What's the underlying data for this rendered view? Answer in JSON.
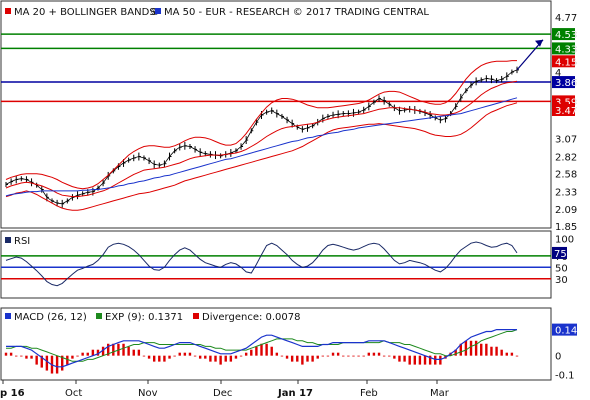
{
  "legend": {
    "main": [
      {
        "label": "MA 20 + BOLLINGER BANDS",
        "color": "#dd0000",
        "suffix_mark": "®"
      },
      {
        "label": "MA 50 - EUR - RESEARCH © 2017 TRADING CENTRAL",
        "color": "#1a33cc"
      }
    ],
    "rsi": [
      {
        "label": "RSI",
        "color": "#1a2a66"
      }
    ],
    "macd": [
      {
        "label": "MACD (26, 12)",
        "color": "#1a33cc"
      },
      {
        "label": "EXP (9): 0.1371",
        "color": "#1e8a1e"
      },
      {
        "label": "Divergence: 0.0078",
        "color": "#dd0000"
      }
    ]
  },
  "colors": {
    "price": "#000000",
    "bollinger": "#dd0000",
    "ma50": "#1a33cc",
    "resistance": "#008000",
    "pivot": "#0000a0",
    "support": "#dd0000",
    "badge_last": "#000080",
    "frame": "#333333"
  },
  "x_axis": {
    "months": [
      {
        "label": "p 16",
        "bold": true
      },
      {
        "label": "Oct",
        "bold": false
      },
      {
        "label": "Nov",
        "bold": false
      },
      {
        "label": "Dec",
        "bold": false
      },
      {
        "label": "Jan 17",
        "bold": true
      },
      {
        "label": "Feb",
        "bold": false
      },
      {
        "label": "Mar",
        "bold": false
      }
    ]
  },
  "chart_data": [
    {
      "type": "line",
      "panel": "price",
      "y_ticks": [
        "4.77",
        "4.53",
        "4.33",
        "4.15",
        "4",
        "3.86",
        "3.59",
        "3.47",
        "3.07",
        "2.82",
        "2.58",
        "2.33",
        "2.09",
        "1.85"
      ],
      "ylim": [
        1.85,
        4.95
      ],
      "levels": [
        {
          "value": 4.53,
          "label": "4.53",
          "kind": "resistance"
        },
        {
          "value": 4.33,
          "label": "4.33",
          "kind": "resistance"
        },
        {
          "value": 3.86,
          "label": "3.86",
          "kind": "pivot"
        },
        {
          "value": 3.59,
          "label": "3.59",
          "kind": "support"
        }
      ],
      "badges": [
        {
          "value": 4.53,
          "label": "4.53",
          "color": "#008000"
        },
        {
          "value": 4.33,
          "label": "4.33",
          "color": "#008000"
        },
        {
          "value": 4.15,
          "label": "4.15",
          "color": "#dd0000"
        },
        {
          "value": 3.86,
          "label": "3.86",
          "color": "#0000a0"
        },
        {
          "value": 3.59,
          "label": "3.59",
          "color": "#dd0000"
        },
        {
          "value": 3.47,
          "label": "3.47",
          "color": "#dd0000"
        }
      ],
      "series": [
        {
          "name": "Price",
          "kind": "price",
          "values": [
            2.43,
            2.47,
            2.5,
            2.51,
            2.5,
            2.46,
            2.42,
            2.36,
            2.25,
            2.2,
            2.17,
            2.16,
            2.2,
            2.25,
            2.28,
            2.3,
            2.32,
            2.33,
            2.38,
            2.45,
            2.55,
            2.62,
            2.68,
            2.73,
            2.77,
            2.8,
            2.82,
            2.8,
            2.76,
            2.71,
            2.7,
            2.72,
            2.82,
            2.9,
            2.95,
            2.97,
            2.96,
            2.92,
            2.88,
            2.86,
            2.85,
            2.84,
            2.83,
            2.85,
            2.87,
            2.9,
            2.96,
            3.05,
            3.18,
            3.3,
            3.4,
            3.44,
            3.46,
            3.42,
            3.38,
            3.33,
            3.28,
            3.23,
            3.2,
            3.22,
            3.25,
            3.3,
            3.35,
            3.38,
            3.4,
            3.41,
            3.42,
            3.42,
            3.43,
            3.44,
            3.47,
            3.52,
            3.58,
            3.63,
            3.6,
            3.55,
            3.5,
            3.46,
            3.47,
            3.48,
            3.47,
            3.45,
            3.43,
            3.4,
            3.36,
            3.33,
            3.35,
            3.42,
            3.52,
            3.64,
            3.74,
            3.82,
            3.87,
            3.89,
            3.91,
            3.9,
            3.88,
            3.9,
            3.94,
            4.0,
            4.03
          ]
        },
        {
          "name": "MA 20",
          "kind": "mid",
          "values": [
            2.38,
            2.41,
            2.43,
            2.45,
            2.46,
            2.45,
            2.43,
            2.41,
            2.38,
            2.35,
            2.31,
            2.28,
            2.27,
            2.26,
            2.26,
            2.27,
            2.28,
            2.3,
            2.32,
            2.34,
            2.37,
            2.41,
            2.45,
            2.49,
            2.53,
            2.57,
            2.6,
            2.63,
            2.64,
            2.65,
            2.66,
            2.67,
            2.69,
            2.71,
            2.73,
            2.76,
            2.79,
            2.81,
            2.82,
            2.83,
            2.84,
            2.84,
            2.84,
            2.85,
            2.86,
            2.87,
            2.89,
            2.92,
            2.96,
            3.0,
            3.05,
            3.1,
            3.14,
            3.18,
            3.21,
            3.23,
            3.24,
            3.25,
            3.26,
            3.27,
            3.28,
            3.3,
            3.32,
            3.34,
            3.36,
            3.37,
            3.38,
            3.39,
            3.4,
            3.41,
            3.42,
            3.44,
            3.46,
            3.48,
            3.49,
            3.5,
            3.5,
            3.5,
            3.49,
            3.48,
            3.47,
            3.46,
            3.44,
            3.42,
            3.41,
            3.4,
            3.4,
            3.41,
            3.43,
            3.46,
            3.51,
            3.56,
            3.62,
            3.68,
            3.73,
            3.77,
            3.8,
            3.83,
            3.85,
            3.86,
            3.87
          ]
        },
        {
          "name": "Upper Band",
          "kind": "band",
          "values": [
            2.5,
            2.53,
            2.55,
            2.57,
            2.58,
            2.58,
            2.58,
            2.57,
            2.55,
            2.53,
            2.5,
            2.46,
            2.43,
            2.4,
            2.38,
            2.37,
            2.38,
            2.4,
            2.44,
            2.5,
            2.56,
            2.63,
            2.7,
            2.77,
            2.84,
            2.89,
            2.93,
            2.96,
            2.97,
            2.97,
            2.96,
            2.95,
            2.95,
            2.97,
            3.0,
            3.04,
            3.07,
            3.09,
            3.09,
            3.08,
            3.06,
            3.03,
            3.0,
            2.98,
            2.98,
            3.0,
            3.06,
            3.14,
            3.24,
            3.34,
            3.43,
            3.51,
            3.57,
            3.61,
            3.63,
            3.63,
            3.62,
            3.6,
            3.57,
            3.54,
            3.52,
            3.5,
            3.5,
            3.5,
            3.51,
            3.52,
            3.53,
            3.54,
            3.55,
            3.56,
            3.58,
            3.61,
            3.65,
            3.69,
            3.72,
            3.73,
            3.73,
            3.72,
            3.69,
            3.66,
            3.63,
            3.6,
            3.58,
            3.56,
            3.55,
            3.55,
            3.57,
            3.62,
            3.7,
            3.8,
            3.9,
            3.98,
            4.04,
            4.09,
            4.12,
            4.14,
            4.15,
            4.15,
            4.15,
            4.16,
            4.16
          ]
        },
        {
          "name": "Lower Band",
          "kind": "band",
          "values": [
            2.26,
            2.28,
            2.31,
            2.32,
            2.34,
            2.32,
            2.29,
            2.25,
            2.21,
            2.17,
            2.13,
            2.1,
            2.08,
            2.07,
            2.07,
            2.08,
            2.1,
            2.12,
            2.14,
            2.16,
            2.18,
            2.2,
            2.22,
            2.24,
            2.26,
            2.28,
            2.3,
            2.31,
            2.32,
            2.34,
            2.36,
            2.38,
            2.4,
            2.42,
            2.45,
            2.48,
            2.5,
            2.52,
            2.54,
            2.56,
            2.58,
            2.6,
            2.62,
            2.64,
            2.66,
            2.68,
            2.7,
            2.72,
            2.74,
            2.76,
            2.78,
            2.8,
            2.82,
            2.84,
            2.86,
            2.88,
            2.9,
            2.93,
            2.96,
            3.0,
            3.04,
            3.08,
            3.12,
            3.16,
            3.19,
            3.21,
            3.22,
            3.23,
            3.24,
            3.25,
            3.26,
            3.27,
            3.27,
            3.28,
            3.27,
            3.26,
            3.25,
            3.24,
            3.23,
            3.22,
            3.21,
            3.19,
            3.17,
            3.14,
            3.12,
            3.11,
            3.1,
            3.1,
            3.11,
            3.13,
            3.17,
            3.22,
            3.28,
            3.34,
            3.4,
            3.44,
            3.47,
            3.5,
            3.53,
            3.55,
            3.57
          ]
        },
        {
          "name": "MA 50",
          "kind": "ma50",
          "values": [
            2.27,
            2.29,
            2.3,
            2.31,
            2.32,
            2.33,
            2.33,
            2.34,
            2.34,
            2.34,
            2.34,
            2.34,
            2.34,
            2.34,
            2.34,
            2.35,
            2.35,
            2.36,
            2.36,
            2.37,
            2.38,
            2.39,
            2.41,
            2.42,
            2.44,
            2.45,
            2.47,
            2.48,
            2.5,
            2.52,
            2.53,
            2.55,
            2.56,
            2.58,
            2.6,
            2.62,
            2.64,
            2.66,
            2.68,
            2.7,
            2.72,
            2.74,
            2.76,
            2.78,
            2.79,
            2.81,
            2.83,
            2.85,
            2.87,
            2.89,
            2.91,
            2.93,
            2.95,
            2.97,
            2.99,
            3.01,
            3.03,
            3.04,
            3.06,
            3.08,
            3.09,
            3.11,
            3.12,
            3.14,
            3.15,
            3.16,
            3.18,
            3.19,
            3.2,
            3.22,
            3.23,
            3.24,
            3.25,
            3.26,
            3.27,
            3.28,
            3.29,
            3.3,
            3.31,
            3.32,
            3.33,
            3.34,
            3.35,
            3.36,
            3.37,
            3.38,
            3.39,
            3.4,
            3.41,
            3.42,
            3.44,
            3.46,
            3.48,
            3.5,
            3.52,
            3.54,
            3.56,
            3.58,
            3.6,
            3.62,
            3.64
          ]
        }
      ],
      "projection": {
        "to": 4.45
      }
    },
    {
      "type": "line",
      "panel": "rsi",
      "y_ticks": [
        "100",
        "70",
        "50",
        "30"
      ],
      "ylim": [
        0,
        108
      ],
      "last_badge": "75",
      "levels": [
        {
          "value": 70,
          "kind": "resistance"
        },
        {
          "value": 50,
          "kind": "pivot"
        },
        {
          "value": 30,
          "kind": "support"
        }
      ],
      "series": [
        {
          "name": "RSI",
          "kind": "rsi",
          "values": [
            62,
            65,
            68,
            66,
            60,
            52,
            44,
            35,
            25,
            20,
            18,
            22,
            30,
            38,
            45,
            48,
            52,
            55,
            62,
            72,
            85,
            90,
            92,
            90,
            86,
            80,
            72,
            62,
            52,
            46,
            45,
            50,
            62,
            72,
            80,
            84,
            80,
            72,
            64,
            58,
            55,
            52,
            50,
            55,
            58,
            56,
            50,
            42,
            40,
            55,
            72,
            88,
            92,
            88,
            80,
            72,
            62,
            55,
            50,
            52,
            58,
            68,
            80,
            88,
            90,
            88,
            85,
            82,
            80,
            82,
            86,
            90,
            92,
            90,
            82,
            72,
            62,
            56,
            58,
            62,
            60,
            58,
            55,
            50,
            45,
            42,
            48,
            58,
            70,
            80,
            86,
            92,
            94,
            92,
            88,
            85,
            86,
            90,
            92,
            88,
            75
          ]
        }
      ]
    },
    {
      "type": "line",
      "panel": "macd",
      "y_ticks": [
        "0.14",
        "0",
        "-0.1"
      ],
      "ylim": [
        -0.12,
        0.24
      ],
      "last_badge": "0.14",
      "series": [
        {
          "name": "MACD (26, 12)",
          "kind": "macd",
          "values": [
            0.05,
            0.05,
            0.05,
            0.05,
            0.04,
            0.03,
            0.01,
            -0.01,
            -0.03,
            -0.05,
            -0.06,
            -0.06,
            -0.05,
            -0.04,
            -0.03,
            -0.02,
            -0.01,
            0,
            0.01,
            0.03,
            0.05,
            0.06,
            0.07,
            0.08,
            0.08,
            0.08,
            0.08,
            0.07,
            0.06,
            0.05,
            0.04,
            0.04,
            0.05,
            0.06,
            0.07,
            0.07,
            0.07,
            0.06,
            0.05,
            0.04,
            0.03,
            0.02,
            0.01,
            0.01,
            0.01,
            0.02,
            0.03,
            0.04,
            0.06,
            0.08,
            0.1,
            0.11,
            0.11,
            0.1,
            0.09,
            0.08,
            0.07,
            0.06,
            0.05,
            0.05,
            0.05,
            0.05,
            0.06,
            0.06,
            0.07,
            0.07,
            0.07,
            0.07,
            0.07,
            0.07,
            0.07,
            0.08,
            0.08,
            0.08,
            0.08,
            0.07,
            0.06,
            0.05,
            0.04,
            0.03,
            0.02,
            0.01,
            0,
            -0.01,
            -0.02,
            -0.02,
            -0.01,
            0.01,
            0.03,
            0.06,
            0.08,
            0.1,
            0.11,
            0.12,
            0.13,
            0.13,
            0.14,
            0.14,
            0.14,
            0.14,
            0.14
          ]
        },
        {
          "name": "EXP (9): 0.1371",
          "kind": "signal",
          "values": [
            0.04,
            0.04,
            0.05,
            0.05,
            0.05,
            0.04,
            0.04,
            0.03,
            0.02,
            0.01,
            0,
            -0.01,
            -0.02,
            -0.03,
            -0.03,
            -0.03,
            -0.02,
            -0.02,
            -0.01,
            0,
            0.01,
            0.02,
            0.03,
            0.04,
            0.05,
            0.06,
            0.06,
            0.07,
            0.07,
            0.07,
            0.06,
            0.06,
            0.06,
            0.06,
            0.06,
            0.06,
            0.06,
            0.06,
            0.06,
            0.05,
            0.05,
            0.04,
            0.04,
            0.03,
            0.03,
            0.03,
            0.03,
            0.03,
            0.04,
            0.05,
            0.06,
            0.07,
            0.08,
            0.09,
            0.09,
            0.09,
            0.09,
            0.08,
            0.08,
            0.07,
            0.07,
            0.06,
            0.06,
            0.06,
            0.06,
            0.06,
            0.07,
            0.07,
            0.07,
            0.07,
            0.07,
            0.07,
            0.07,
            0.07,
            0.08,
            0.07,
            0.07,
            0.07,
            0.06,
            0.06,
            0.05,
            0.04,
            0.03,
            0.02,
            0.01,
            0.01,
            0,
            0,
            0.01,
            0.02,
            0.03,
            0.05,
            0.06,
            0.08,
            0.09,
            0.1,
            0.11,
            0.12,
            0.13,
            0.13,
            0.14
          ]
        }
      ]
    }
  ]
}
